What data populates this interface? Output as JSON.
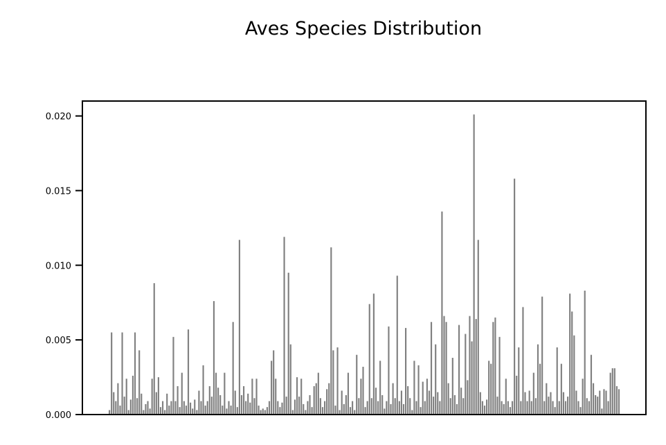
{
  "chart_data": {
    "type": "bar",
    "title": "Aves Species Distribution",
    "xlabel": "",
    "ylabel": "",
    "ylim": [
      0,
      0.021
    ],
    "yticks": [
      {
        "value": 0.0,
        "label": "0.000"
      },
      {
        "value": 0.005,
        "label": "0.005"
      },
      {
        "value": 0.01,
        "label": "0.010"
      },
      {
        "value": 0.015,
        "label": "0.015"
      },
      {
        "value": 0.02,
        "label": "0.020"
      }
    ],
    "grid": false,
    "bar_color": "#808080",
    "num_categories": 240,
    "values": [
      0.0003,
      0.0055,
      0.0015,
      0.0009,
      0.0021,
      0.0006,
      0.0055,
      0.0012,
      0.0024,
      0.0003,
      0.001,
      0.0026,
      0.0055,
      0.0011,
      0.0043,
      0.0014,
      0.0003,
      0.0007,
      0.0009,
      0.0004,
      0.0024,
      0.0088,
      0.0015,
      0.0025,
      0.0005,
      0.0009,
      0.0003,
      0.0014,
      0.0006,
      0.0009,
      0.0052,
      0.0009,
      0.0019,
      0.0005,
      0.0028,
      0.0009,
      0.0006,
      0.0057,
      0.0008,
      0.0004,
      0.001,
      0.0003,
      0.0016,
      0.0009,
      0.0033,
      0.0006,
      0.0009,
      0.0019,
      0.0012,
      0.0076,
      0.0028,
      0.0018,
      0.0013,
      0.0006,
      0.0028,
      0.0004,
      0.0009,
      0.0006,
      0.0062,
      0.0016,
      0.0005,
      0.0117,
      0.0013,
      0.0019,
      0.0009,
      0.0014,
      0.0008,
      0.0024,
      0.0011,
      0.0024,
      0.0006,
      0.0003,
      0.0004,
      0.0003,
      0.0005,
      0.0009,
      0.0036,
      0.0043,
      0.0024,
      0.0009,
      0.0005,
      0.0008,
      0.0119,
      0.0012,
      0.0095,
      0.0047,
      0.0003,
      0.001,
      0.0025,
      0.0012,
      0.0024,
      0.0007,
      0.0003,
      0.0009,
      0.0013,
      0.0005,
      0.0019,
      0.0021,
      0.0028,
      0.0011,
      0.0005,
      0.0009,
      0.0017,
      0.0021,
      0.0112,
      0.0043,
      0.0006,
      0.0045,
      0.0003,
      0.0016,
      0.0007,
      0.0013,
      0.0028,
      0.0005,
      0.0009,
      0.0003,
      0.004,
      0.0011,
      0.0024,
      0.0032,
      0.0005,
      0.0009,
      0.0074,
      0.0011,
      0.0081,
      0.0018,
      0.0009,
      0.0036,
      0.0013,
      0.0004,
      0.0009,
      0.0059,
      0.0007,
      0.0021,
      0.0011,
      0.0093,
      0.0009,
      0.0016,
      0.0007,
      0.0058,
      0.0019,
      0.0011,
      0.0003,
      0.0036,
      0.0009,
      0.0033,
      0.0005,
      0.0022,
      0.0009,
      0.0024,
      0.0016,
      0.0062,
      0.0012,
      0.0047,
      0.0015,
      0.0009,
      0.0136,
      0.0066,
      0.0062,
      0.0021,
      0.0011,
      0.0038,
      0.0013,
      0.0007,
      0.006,
      0.0018,
      0.0011,
      0.0054,
      0.0023,
      0.0066,
      0.0049,
      0.0201,
      0.0064,
      0.0117,
      0.0015,
      0.0009,
      0.0006,
      0.001,
      0.0036,
      0.0034,
      0.0062,
      0.0065,
      0.0012,
      0.0052,
      0.0009,
      0.0007,
      0.0024,
      0.0009,
      0.0005,
      0.0009,
      0.0158,
      0.0026,
      0.0045,
      0.0009,
      0.0072,
      0.0015,
      0.0009,
      0.0016,
      0.0009,
      0.0028,
      0.0011,
      0.0047,
      0.0034,
      0.0079,
      0.0009,
      0.0021,
      0.0012,
      0.0015,
      0.0009,
      0.0005,
      0.0045,
      0.0009,
      0.0034,
      0.0015,
      0.0009,
      0.0012,
      0.0081,
      0.0069,
      0.0053,
      0.0016,
      0.0009,
      0.0005,
      0.0024,
      0.0083,
      0.0011,
      0.0009,
      0.004,
      0.0021,
      0.0013,
      0.0012,
      0.0016,
      0.0004,
      0.0017,
      0.0016,
      0.0009,
      0.0028,
      0.0031,
      0.0031,
      0.0019,
      0.0017
    ]
  }
}
